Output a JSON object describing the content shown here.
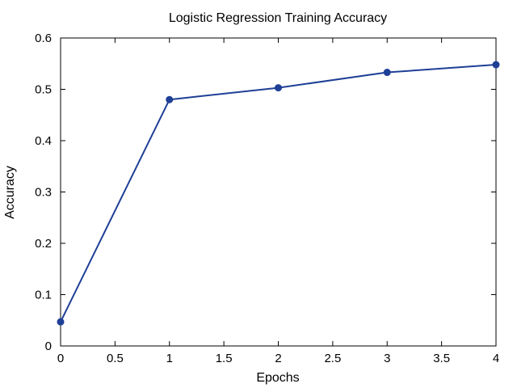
{
  "chart_data": {
    "type": "line",
    "title": "Logistic Regression Training Accuracy",
    "xlabel": "Epochs",
    "ylabel": "Accuracy",
    "xlim": [
      0,
      4
    ],
    "ylim": [
      0,
      0.6
    ],
    "xticks": [
      0,
      0.5,
      1,
      1.5,
      2,
      2.5,
      3,
      3.5,
      4
    ],
    "xtick_labels": [
      "0",
      "0.5",
      "1",
      "1.5",
      "2",
      "2.5",
      "3",
      "3.5",
      "4"
    ],
    "yticks": [
      0,
      0.1,
      0.2,
      0.3,
      0.4,
      0.5,
      0.6
    ],
    "ytick_labels": [
      "0",
      "0.1",
      "0.2",
      "0.3",
      "0.4",
      "0.5",
      "0.6"
    ],
    "grid": false,
    "legend": false,
    "series": [
      {
        "color": "#1f3f96",
        "marker": "circle",
        "x": [
          0,
          1,
          2,
          3,
          4
        ],
        "y": [
          0.047,
          0.48,
          0.503,
          0.533,
          0.548
        ]
      }
    ]
  }
}
